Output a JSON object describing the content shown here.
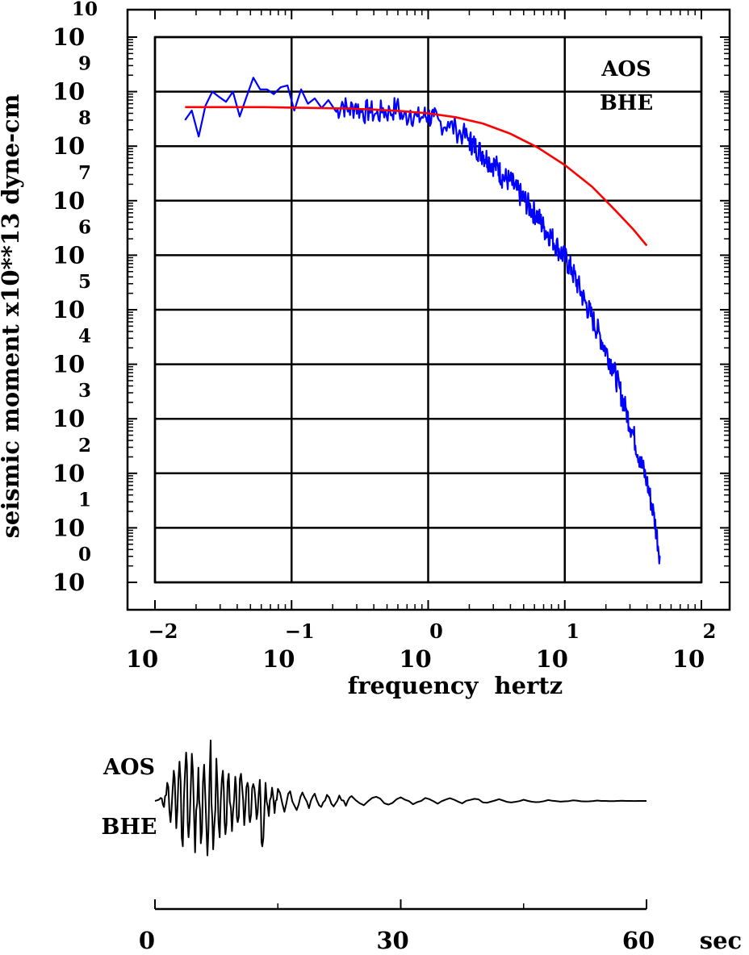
{
  "chart_data": [
    {
      "type": "line",
      "xscale": "log",
      "yscale": "log",
      "xlabel": "frequency  hertz",
      "ylabel": "seismic moment x10**13 dyne-cm",
      "xlim": [
        0.01,
        100
      ],
      "ylim": [
        1,
        10000000000
      ],
      "grid": true,
      "x_ticks": [
        {
          "base": "10",
          "exp": "−2"
        },
        {
          "base": "10",
          "exp": "−1"
        },
        {
          "base": "10",
          "exp": "0"
        },
        {
          "base": "10",
          "exp": "1"
        },
        {
          "base": "10",
          "exp": "2"
        }
      ],
      "y_ticks": [
        {
          "base": "10",
          "exp": "0"
        },
        {
          "base": "10",
          "exp": "1"
        },
        {
          "base": "10",
          "exp": "2"
        },
        {
          "base": "10",
          "exp": "3"
        },
        {
          "base": "10",
          "exp": "4"
        },
        {
          "base": "10",
          "exp": "5"
        },
        {
          "base": "10",
          "exp": "6"
        },
        {
          "base": "10",
          "exp": "7"
        },
        {
          "base": "10",
          "exp": "8"
        },
        {
          "base": "10",
          "exp": "9"
        },
        {
          "base": "10",
          "exp": "10"
        }
      ],
      "annotations": [
        "AOS",
        "BHE"
      ],
      "series": [
        {
          "color": "#0000ff",
          "style": "spectrum",
          "x": [
            0.0166,
            0.0186,
            0.0209,
            0.0234,
            0.0263,
            0.0295,
            0.0331,
            0.0372,
            0.0417,
            0.0468,
            0.0525,
            0.0589,
            0.0661,
            0.0741,
            0.0832,
            0.0933,
            0.1047,
            0.1175,
            0.1318,
            0.1479,
            0.166,
            0.1862,
            0.2089,
            0.2344,
            0.263,
            0.2951,
            0.3311,
            0.3715,
            0.4169,
            0.4677,
            0.5248,
            0.5888,
            0.6607,
            0.7413,
            0.8318,
            0.9333,
            1.0,
            1.1,
            1.2,
            1.4,
            1.6,
            1.8,
            2.0,
            2.2,
            2.5,
            2.8,
            3.2,
            3.5,
            4.0,
            4.5,
            5.0,
            5.6,
            6.3,
            7.0,
            7.9,
            8.9,
            10.0,
            11.2,
            12.6,
            14.1,
            15.8,
            17.8,
            20.0,
            22.4,
            25.1,
            28.2,
            31.6,
            35.5,
            39.8,
            44.7,
            50.1
          ],
          "y": [
            300000000,
            450000000,
            150000000,
            550000000,
            1000000000,
            800000000,
            650000000,
            1000000000,
            350000000,
            800000000,
            1800000000,
            1100000000,
            1100000000,
            900000000,
            1200000000,
            1300000000,
            450000000,
            1100000000,
            600000000,
            750000000,
            500000000,
            700000000,
            450000000,
            650000000,
            500000000,
            600000000,
            450000000,
            500000000,
            400000000,
            500000000,
            450000000,
            600000000,
            350000000,
            450000000,
            350000000,
            400000000,
            400000000,
            350000000,
            300000000,
            280000000,
            220000000,
            180000000,
            140000000,
            110000000,
            80000000,
            60000000,
            45000000,
            30000000,
            25000000,
            16000000,
            12000000,
            8000000,
            6000000,
            3500000,
            2500000,
            1500000,
            1000000,
            600000,
            300000,
            150000,
            80000,
            40000,
            20000,
            10000,
            4000,
            1500,
            600,
            200,
            80,
            20,
            3
          ]
        },
        {
          "color": "#ff0000",
          "style": "model-fit",
          "x": [
            0.0166,
            0.0316,
            0.0631,
            0.1,
            0.1585,
            0.2512,
            0.3981,
            0.631,
            1.0,
            1.585,
            2.512,
            3.981,
            6.31,
            10.0,
            15.85,
            20.0,
            25.0,
            31.62,
            39.81
          ],
          "y": [
            520000000,
            520000000,
            520000000,
            510000000,
            500000000,
            490000000,
            470000000,
            440000000,
            400000000,
            340000000,
            260000000,
            170000000,
            95000000,
            45000000,
            18000000,
            10000000,
            5600000,
            3000000,
            1500000
          ]
        }
      ]
    },
    {
      "type": "line",
      "xlim": [
        0,
        60
      ],
      "x_ticks": [
        {
          "value": 0,
          "label": "0"
        },
        {
          "value": 30,
          "label": "30"
        },
        {
          "value": 60,
          "label": "60"
        }
      ],
      "x_minor_ticks": [
        15,
        45
      ],
      "unit": "sec",
      "annotations": [
        "AOS",
        "BHE"
      ],
      "series": [
        {
          "color": "#000000",
          "style": "seismogram",
          "t": [
            0,
            0.7,
            1.1,
            1.5,
            1.9,
            2.3,
            2.6,
            3.0,
            3.4,
            3.8,
            4.1,
            4.5,
            4.9,
            5.3,
            5.6,
            6.0,
            6.4,
            6.8,
            7.1,
            7.5,
            7.9,
            8.3,
            8.6,
            9.0,
            9.4,
            9.8,
            10.1,
            10.5,
            10.9,
            11.3,
            11.6,
            12.0,
            12.4,
            12.8,
            13.1,
            13.5,
            13.9,
            14.3,
            14.6,
            15.0,
            15.8,
            16.5,
            17.3,
            18.0,
            18.8,
            19.5,
            20.3,
            21.0,
            21.8,
            22.5,
            23.3,
            24.0,
            25.5,
            27.0,
            28.5,
            30.0,
            31.5,
            33.0,
            34.5,
            36.0,
            37.5,
            39.0,
            40.5,
            42.0,
            43.5,
            45.0,
            46.5,
            48.0,
            49.5,
            51.0,
            52.5,
            54.0,
            55.5,
            57.0,
            58.5,
            60.0
          ],
          "amp": [
            0,
            0.05,
            -0.1,
            0.3,
            -0.35,
            0.5,
            -0.45,
            0.65,
            -0.75,
            0.8,
            -0.6,
            0.78,
            -0.85,
            0.55,
            -0.7,
            0.6,
            -0.9,
            1.0,
            -0.8,
            0.7,
            -0.6,
            0.5,
            -0.55,
            0.45,
            -0.5,
            0.4,
            -0.35,
            0.45,
            -0.4,
            0.3,
            -0.35,
            0.28,
            -0.3,
            0.35,
            -0.75,
            0.3,
            -0.25,
            0.22,
            -0.2,
            0.2,
            -0.18,
            0.16,
            -0.15,
            0.14,
            -0.12,
            0.12,
            -0.1,
            0.1,
            -0.09,
            0.09,
            -0.08,
            0.08,
            -0.07,
            0.07,
            -0.06,
            0.06,
            -0.055,
            0.05,
            -0.045,
            0.045,
            -0.04,
            0.035,
            -0.03,
            0.03,
            -0.025,
            0.02,
            -0.02,
            0.015,
            -0.012,
            0.01,
            -0.008,
            0.006,
            -0.004,
            0.003,
            -0.001,
            0
          ]
        }
      ]
    }
  ]
}
